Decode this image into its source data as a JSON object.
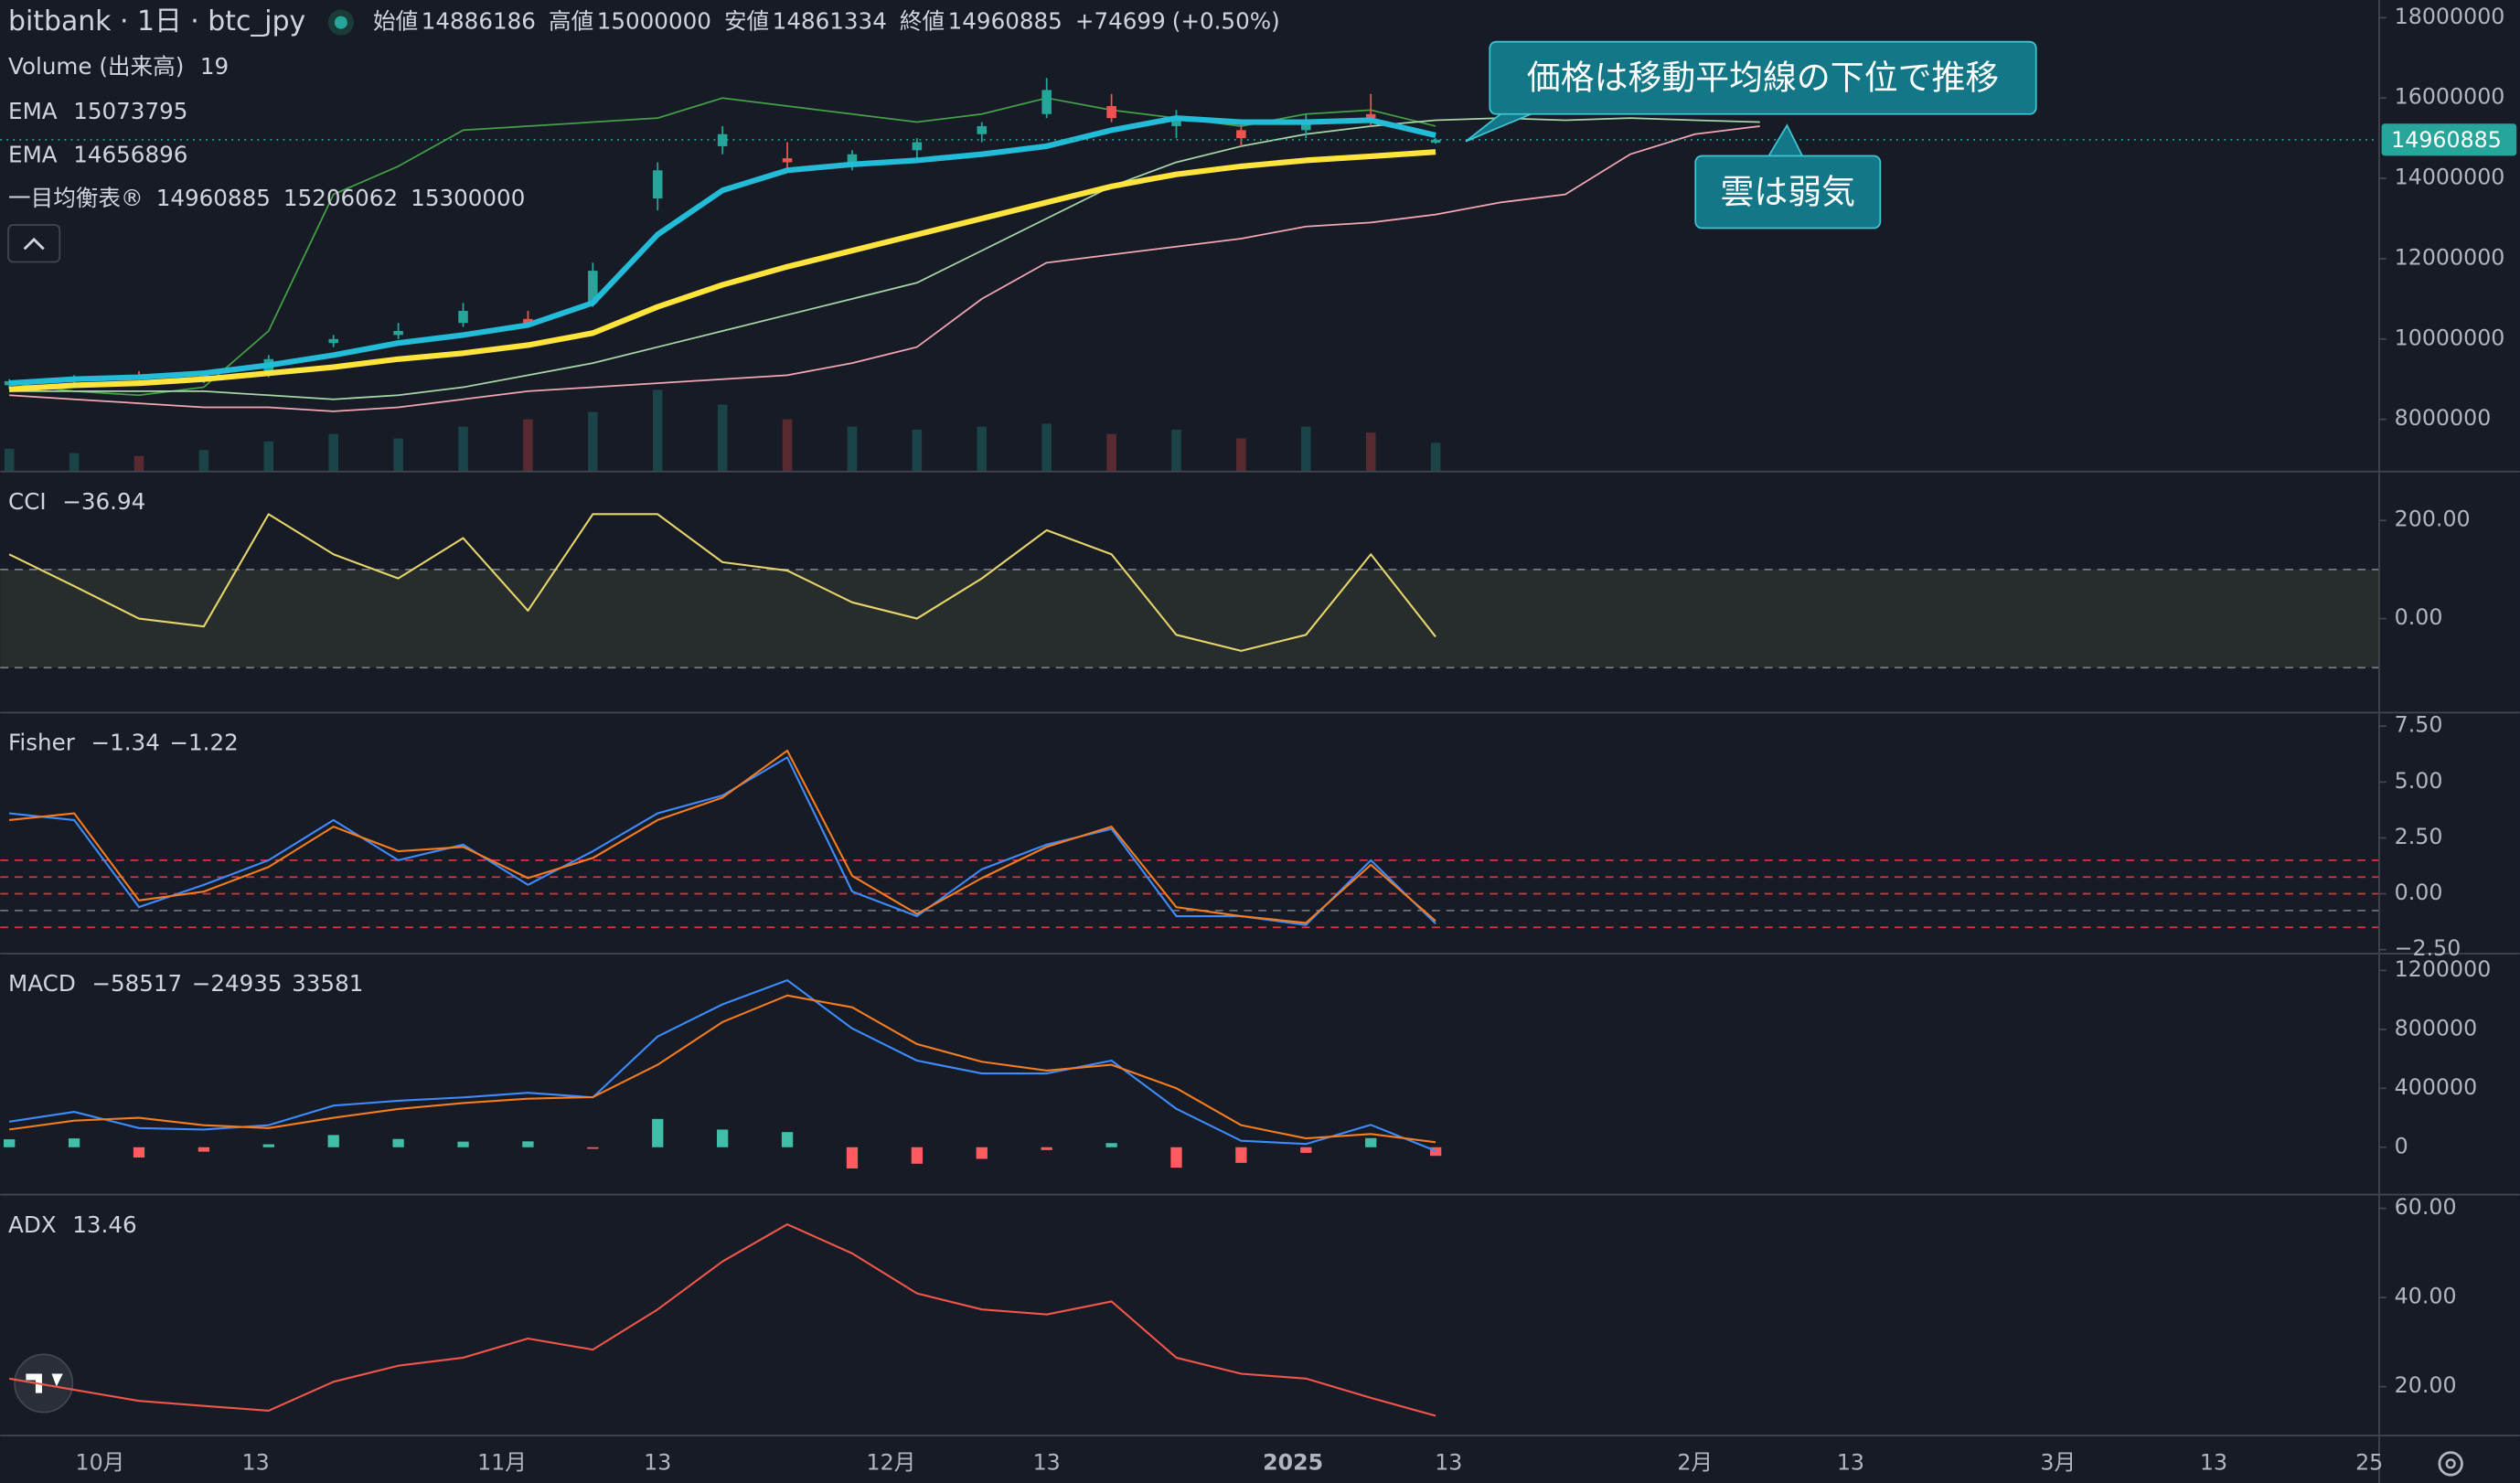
{
  "chart_data": [
    {
      "type": "candlestick",
      "title": "bitbank · 1日 · btc_jpy",
      "ohlc_labels": [
        "始値",
        "高値",
        "安値",
        "終値"
      ],
      "change": "+74699",
      "change_pct": "(+0.50%)",
      "x": [
        -7,
        -2,
        3,
        8,
        13,
        18,
        23,
        28,
        33,
        38,
        43,
        48,
        53,
        58,
        63,
        68,
        73,
        78,
        83,
        88,
        93,
        98,
        103,
        108,
        113,
        118,
        123,
        128,
        133
      ],
      "xlim": [
        -7.7,
        175.7
      ],
      "ylim": [
        6720000,
        18440000
      ],
      "yticks": [
        8000000,
        10000000,
        12000000,
        14000000,
        16000000,
        18000000
      ],
      "up_color": "#26a69a",
      "down_color": "#ef5350",
      "open": [
        8850000,
        8950000,
        9050000,
        9000000,
        9100000,
        9900000,
        10100000,
        10400000,
        10500000,
        10900000,
        13500000,
        14800000,
        14500000,
        14300000,
        14700000,
        15100000,
        15600000,
        15800000,
        15300000,
        15200000,
        15200000,
        15600000,
        14886186,
        null,
        null,
        null,
        null,
        null,
        null
      ],
      "high": [
        9000000,
        9100000,
        9200000,
        9150000,
        9600000,
        10100000,
        10400000,
        10900000,
        10700000,
        11900000,
        14400000,
        15300000,
        14900000,
        14700000,
        15000000,
        15400000,
        16500000,
        16100000,
        15700000,
        15400000,
        15600000,
        16100000,
        15000000,
        null,
        null,
        null,
        null,
        null,
        null
      ],
      "low": [
        8750000,
        8850000,
        8900000,
        8900000,
        9050000,
        9800000,
        10000000,
        10300000,
        10300000,
        10800000,
        13200000,
        14600000,
        14200000,
        14200000,
        14500000,
        14900000,
        15500000,
        15400000,
        15000000,
        14800000,
        15000000,
        15300000,
        14861334,
        null,
        null,
        null,
        null,
        null,
        null
      ],
      "close": [
        8950000,
        9050000,
        9000000,
        9100000,
        9500000,
        10000000,
        10200000,
        10700000,
        10400000,
        11700000,
        14200000,
        15100000,
        14400000,
        14600000,
        14900000,
        15300000,
        16200000,
        15500000,
        15500000,
        15000000,
        15400000,
        15500000,
        14960885,
        null,
        null,
        null,
        null,
        null,
        null
      ],
      "volume": {
        "name": "Volume (出来高)",
        "lim": [
          0,
          320
        ],
        "values": [
          15,
          12,
          10,
          14,
          20,
          25,
          22,
          30,
          35,
          40,
          55,
          45,
          35,
          30,
          28,
          30,
          32,
          25,
          28,
          22,
          30,
          26,
          19,
          null,
          null,
          null,
          null,
          null,
          null
        ]
      },
      "series": [
        {
          "name": "EMA",
          "color": "#22bcd8",
          "width": 3.5,
          "values": [
            8900000,
            9000000,
            9050000,
            9150000,
            9350000,
            9600000,
            9900000,
            10100000,
            10350000,
            10900000,
            12600000,
            13700000,
            14200000,
            14350000,
            14450000,
            14600000,
            14800000,
            15200000,
            15500000,
            15400000,
            15400000,
            15450000,
            15073795,
            null,
            null,
            null,
            null,
            null,
            null
          ]
        },
        {
          "name": "EMA",
          "color": "#ffe53b",
          "width": 3.5,
          "values": [
            8750000,
            8850000,
            8900000,
            9000000,
            9150000,
            9300000,
            9500000,
            9650000,
            9850000,
            10150000,
            10800000,
            11350000,
            11800000,
            12200000,
            12600000,
            13000000,
            13400000,
            13800000,
            14100000,
            14300000,
            14450000,
            14550000,
            14656896,
            null,
            null,
            null,
            null,
            null,
            null
          ]
        },
        {
          "color": "#43a047",
          "width": 1,
          "values": [
            8900000,
            8700000,
            8600000,
            8800000,
            10200000,
            13600000,
            14300000,
            15200000,
            15300000,
            15400000,
            15500000,
            16000000,
            15800000,
            15600000,
            15400000,
            15600000,
            16000000,
            15700000,
            15500000,
            15300000,
            15600000,
            15700000,
            15300000,
            null,
            null,
            null,
            null,
            null,
            null
          ]
        },
        {
          "color": "#a5d6a7",
          "width": 1,
          "values": [
            8700000,
            8700000,
            8700000,
            8700000,
            8600000,
            8500000,
            8600000,
            8800000,
            9100000,
            9400000,
            9800000,
            10200000,
            10600000,
            11000000,
            11400000,
            12200000,
            13000000,
            13800000,
            14400000,
            14800000,
            15100000,
            15300000,
            15450000,
            15500000,
            15450000,
            15500000,
            15450000,
            15400000,
            null
          ]
        },
        {
          "color": "#f4a6b4",
          "width": 1,
          "values": [
            8600000,
            8500000,
            8400000,
            8300000,
            8300000,
            8200000,
            8300000,
            8500000,
            8700000,
            8800000,
            8900000,
            9000000,
            9100000,
            9400000,
            9800000,
            11000000,
            11900000,
            12100000,
            12300000,
            12500000,
            12800000,
            12900000,
            13100000,
            13400000,
            13600000,
            14600000,
            15100000,
            15300000,
            null
          ]
        }
      ],
      "ichimoku": {
        "name": "一目均衡表®",
        "readout": [
          15206062,
          15300000
        ]
      },
      "annotations": [
        {
          "text": "価格は移動平均線の下位で推移"
        },
        {
          "text": "雲は弱気"
        }
      ]
    },
    {
      "type": "line",
      "title": "CCI",
      "readout": [
        {
          "text": "−36.94",
          "color": "#e6d56a"
        }
      ],
      "x": [
        -7,
        -2,
        3,
        8,
        13,
        18,
        23,
        28,
        33,
        38,
        43,
        48,
        53,
        58,
        63,
        68,
        73,
        78,
        83,
        88,
        93,
        98,
        103
      ],
      "xlim": [
        -7.7,
        175.7
      ],
      "ylim": [
        -190,
        298
      ],
      "yticks": [
        {
          "value": 0,
          "label": "0.00"
        },
        {
          "value": 200,
          "label": "200.00"
        }
      ],
      "band": [
        -100,
        100
      ],
      "series": [
        {
          "color": "#e6d56a",
          "width": 1.2,
          "values": [
            131,
            66,
            0,
            -16,
            213,
            131,
            82,
            164,
            16,
            213,
            213,
            115,
            98,
            33,
            0,
            82,
            180,
            131,
            -33,
            -66,
            -33,
            131,
            -36.94
          ]
        }
      ]
    },
    {
      "type": "line",
      "title": "Fisher",
      "readout": [
        {
          "text": "−1.34",
          "color": "#3d8bfd"
        },
        {
          "text": "−1.22",
          "color": "#f57c1f"
        }
      ],
      "x": [
        -7,
        -2,
        3,
        8,
        13,
        18,
        23,
        28,
        33,
        38,
        43,
        48,
        53,
        58,
        63,
        68,
        73,
        78,
        83,
        88,
        93,
        98,
        103
      ],
      "xlim": [
        -7.7,
        175.7
      ],
      "ylim": [
        -2.64,
        8.07
      ],
      "yticks": [
        {
          "value": -2.5,
          "label": "−2.50"
        },
        {
          "value": 0,
          "label": "0.00"
        },
        {
          "value": 2.5,
          "label": "2.50"
        },
        {
          "value": 5,
          "label": "5.00"
        },
        {
          "value": 7.5,
          "label": "7.50"
        }
      ],
      "levels": [
        {
          "value": 1.5,
          "color": "#f23645"
        },
        {
          "value": 0.75,
          "color": "#f23645"
        },
        {
          "value": 0,
          "color": "#f23645"
        },
        {
          "value": -0.75,
          "color": "#787b86"
        },
        {
          "value": -1.5,
          "color": "#f23645"
        }
      ],
      "series": [
        {
          "color": "#3d8bfd",
          "width": 1.2,
          "values": [
            3.6,
            3.3,
            -0.6,
            0.4,
            1.5,
            3.3,
            1.5,
            2.2,
            0.4,
            1.9,
            3.6,
            4.4,
            6.1,
            0.1,
            -1.0,
            1.1,
            2.2,
            2.9,
            -1.0,
            -1.0,
            -1.4,
            1.5,
            -1.34
          ]
        },
        {
          "color": "#f57c1f",
          "width": 1.2,
          "values": [
            3.3,
            3.6,
            -0.3,
            0.1,
            1.2,
            3.0,
            1.9,
            2.1,
            0.7,
            1.6,
            3.3,
            4.3,
            6.4,
            0.8,
            -0.9,
            0.7,
            2.1,
            3.0,
            -0.6,
            -1.0,
            -1.3,
            1.3,
            -1.22
          ]
        }
      ]
    },
    {
      "type": "macd",
      "title": "MACD",
      "readout": [
        {
          "text": "−58517",
          "color": "#d1d4dc"
        },
        {
          "text": "−24935",
          "color": "#3d8bfd"
        },
        {
          "text": "33581",
          "color": "#f57c1f"
        }
      ],
      "x": [
        -7,
        -2,
        3,
        8,
        13,
        18,
        23,
        28,
        33,
        38,
        43,
        48,
        53,
        58,
        63,
        68,
        73,
        78,
        83,
        88,
        93,
        98,
        103
      ],
      "xlim": [
        -7.7,
        175.7
      ],
      "ylim": [
        -316000,
        1309000
      ],
      "yticks": [
        0,
        400000,
        800000,
        1200000
      ],
      "histogram": {
        "pos_color": "#3fbfa8",
        "neg_color": "#ff5a5f",
        "values": [
          54000,
          60000,
          -70000,
          -30000,
          20000,
          83000,
          56000,
          38000,
          40000,
          -2000,
          192000,
          120000,
          103000,
          -144000,
          -112000,
          -79000,
          -19000,
          28000,
          -139000,
          -106000,
          -38000,
          62000,
          -58517
        ]
      },
      "series": [
        {
          "color": "#3d8bfd",
          "width": 1.2,
          "values": [
            174000,
            240000,
            130000,
            120000,
            150000,
            283000,
            316000,
            338000,
            370000,
            338000,
            752000,
            970000,
            1133000,
            806000,
            588000,
            501000,
            501000,
            588000,
            261000,
            44000,
            22000,
            152000,
            -24935
          ]
        },
        {
          "color": "#f57c1f",
          "width": 1.2,
          "values": [
            120000,
            180000,
            200000,
            150000,
            130000,
            200000,
            260000,
            300000,
            330000,
            340000,
            560000,
            850000,
            1030000,
            950000,
            700000,
            580000,
            520000,
            560000,
            400000,
            150000,
            60000,
            90000,
            33581
          ]
        }
      ]
    },
    {
      "type": "line",
      "title": "ADX",
      "readout": [
        {
          "text": "13.46",
          "color": "#f0564a"
        }
      ],
      "x": [
        -7,
        -2,
        3,
        8,
        13,
        18,
        23,
        28,
        33,
        38,
        43,
        48,
        53,
        58,
        63,
        68,
        73,
        78,
        83,
        88,
        93,
        98,
        103
      ],
      "xlim": [
        -7.7,
        175.7
      ],
      "ylim": [
        9.2,
        62.9
      ],
      "yticks": [
        {
          "value": 20,
          "label": "20.00"
        },
        {
          "value": 40,
          "label": "40.00"
        },
        {
          "value": 60,
          "label": "60.00"
        }
      ],
      "xticks": [
        {
          "value": 0,
          "label": "10月"
        },
        {
          "value": 12,
          "label": "13"
        },
        {
          "value": 31,
          "label": "11月"
        },
        {
          "value": 43,
          "label": "13"
        },
        {
          "value": 61,
          "label": "12月"
        },
        {
          "value": 73,
          "label": "13"
        },
        {
          "value": 92,
          "label": "2025"
        },
        {
          "value": 104,
          "label": "13"
        },
        {
          "value": 123,
          "label": "2月"
        },
        {
          "value": 135,
          "label": "13"
        },
        {
          "value": 151,
          "label": "3月"
        },
        {
          "value": 163,
          "label": "13"
        },
        {
          "value": 175,
          "label": "25"
        }
      ],
      "series": [
        {
          "color": "#f0564a",
          "width": 1.2,
          "values": [
            21.8,
            19.3,
            16.8,
            15.7,
            14.6,
            21.1,
            24.7,
            26.5,
            30.8,
            28.3,
            37.3,
            48.1,
            56.4,
            49.9,
            40.9,
            37.3,
            36.2,
            39.1,
            26.5,
            22.9,
            21.8,
            17.5,
            13.46
          ]
        }
      ]
    }
  ]
}
